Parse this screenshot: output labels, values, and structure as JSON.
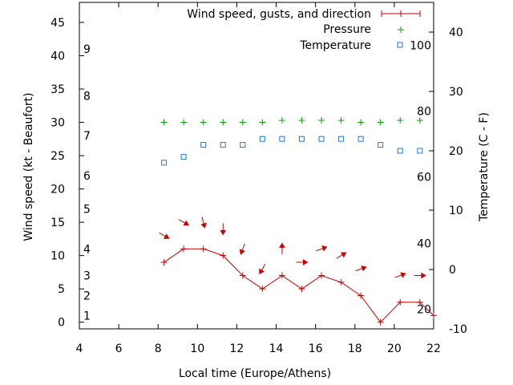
{
  "chart_data": {
    "type": "line",
    "xlabel": "Local time (Europe/Athens)",
    "ylabel_left": "Wind speed (kt - Beaufort)",
    "ylabel_right": "Temperature (C - F)",
    "xlim": [
      4,
      22
    ],
    "ylim_left": [
      -1,
      48
    ],
    "ylim_right": [
      -10,
      45
    ],
    "x_ticks": [
      "4",
      "6",
      "8",
      "10",
      "12",
      "14",
      "16",
      "18",
      "20",
      "22"
    ],
    "y_left_ticks": [
      "0",
      "5",
      "10",
      "15",
      "20",
      "25",
      "30",
      "35",
      "40",
      "45"
    ],
    "y_right_ticks": [
      "-10",
      "0",
      "10",
      "20",
      "30",
      "40"
    ],
    "beaufort_labels": [
      {
        "label": "1",
        "kt": 1
      },
      {
        "label": "2",
        "kt": 4
      },
      {
        "label": "3",
        "kt": 7
      },
      {
        "label": "4",
        "kt": 11
      },
      {
        "label": "5",
        "kt": 17
      },
      {
        "label": "6",
        "kt": 22
      },
      {
        "label": "7",
        "kt": 28
      },
      {
        "label": "8",
        "kt": 34
      },
      {
        "label": "9",
        "kt": 41
      }
    ],
    "fahrenheit_labels": [
      {
        "label": "20",
        "temp_c": -6.7
      },
      {
        "label": "40",
        "temp_c": 4.4
      },
      {
        "label": "60",
        "temp_c": 15.6
      },
      {
        "label": "80",
        "temp_c": 26.7
      },
      {
        "label": "100",
        "temp_c": 37.8
      }
    ],
    "series": [
      {
        "name": "Wind speed, gusts, and direction",
        "color": "#cc0000",
        "x": [
          8.3,
          9.3,
          10.3,
          11.3,
          12.3,
          13.3,
          14.3,
          15.3,
          16.3,
          17.3,
          18.3,
          19.3,
          20.3,
          21.3,
          22
        ],
        "y": [
          9,
          11,
          11,
          10,
          7,
          5,
          7,
          5,
          7,
          6,
          4,
          0,
          3,
          3,
          1
        ]
      },
      {
        "name": "Pressure",
        "color": "#00a000",
        "x": [
          8.3,
          9.3,
          10.3,
          11.3,
          12.3,
          13.3,
          14.3,
          15.3,
          16.3,
          17.3,
          18.3,
          19.3,
          20.3,
          21.3
        ],
        "y": [
          30,
          30,
          30,
          30,
          30,
          30,
          30.3,
          30.3,
          30.3,
          30.3,
          30,
          30,
          30.3,
          30.3
        ]
      },
      {
        "name": "Temperature",
        "color": "#1f77d4",
        "x": [
          8.3,
          9.3,
          10.3,
          11.3,
          12.3,
          13.3,
          14.3,
          15.3,
          16.3,
          17.3,
          18.3,
          19.3,
          20.3,
          21.3
        ],
        "y": [
          18,
          19,
          21,
          21,
          21,
          22,
          22,
          22,
          22,
          22,
          22,
          21,
          20,
          20
        ]
      }
    ],
    "wind_direction_arrows": [
      {
        "x": 8.3,
        "y": 13,
        "angle_deg": 300
      },
      {
        "x": 9.3,
        "y": 15,
        "angle_deg": 300
      },
      {
        "x": 10.3,
        "y": 15,
        "angle_deg": 345
      },
      {
        "x": 11.3,
        "y": 14,
        "angle_deg": 0
      },
      {
        "x": 12.3,
        "y": 11,
        "angle_deg": 20
      },
      {
        "x": 13.3,
        "y": 8,
        "angle_deg": 30
      },
      {
        "x": 14.3,
        "y": 11,
        "angle_deg": 180
      },
      {
        "x": 15.3,
        "y": 9,
        "angle_deg": 270
      },
      {
        "x": 16.3,
        "y": 11,
        "angle_deg": 250
      },
      {
        "x": 17.3,
        "y": 10,
        "angle_deg": 240
      },
      {
        "x": 18.3,
        "y": 8,
        "angle_deg": 250
      },
      {
        "x": 20.3,
        "y": 7,
        "angle_deg": 250
      },
      {
        "x": 21.3,
        "y": 7,
        "angle_deg": 270
      }
    ]
  }
}
